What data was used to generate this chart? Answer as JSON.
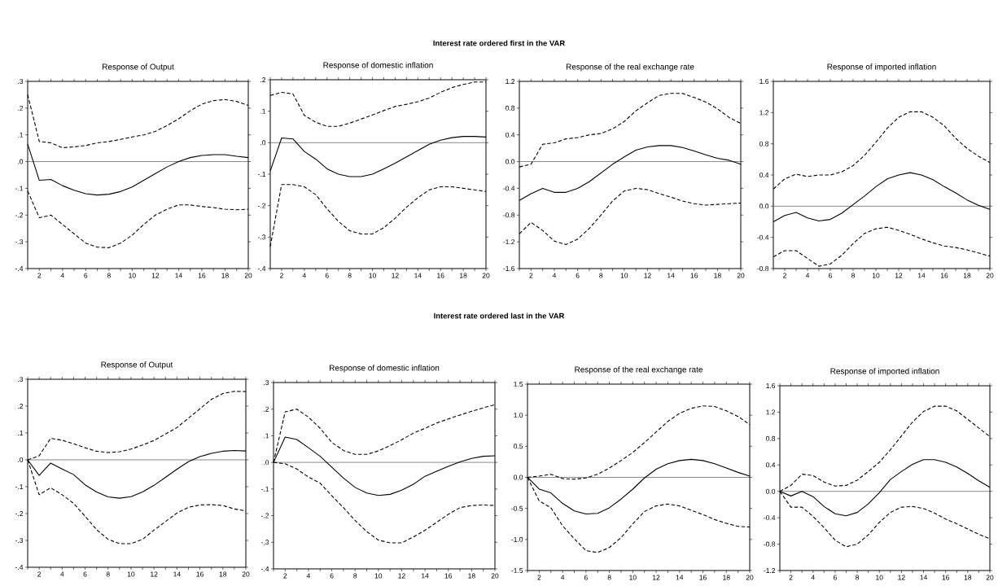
{
  "chart_data": [
    {
      "type": "line",
      "title": "Response of Output",
      "annotations": [
        "Interest rate ordered first in the VAR"
      ],
      "x": [
        1,
        2,
        3,
        4,
        5,
        6,
        7,
        8,
        9,
        10,
        11,
        12,
        13,
        14,
        15,
        16,
        17,
        18,
        19,
        20
      ],
      "xlim": [
        1,
        20
      ],
      "xticks": [
        {
          "value": 1,
          "label": null
        },
        2,
        {
          "value": 3,
          "label": null
        },
        4,
        {
          "value": 5,
          "label": null
        },
        6,
        {
          "value": 7,
          "label": null
        },
        8,
        {
          "value": 9,
          "label": null
        },
        10,
        {
          "value": 11,
          "label": null
        },
        12,
        {
          "value": 13,
          "label": null
        },
        14,
        {
          "value": 15,
          "label": null
        },
        16,
        {
          "value": 17,
          "label": null
        },
        18,
        {
          "value": 19,
          "label": null
        },
        20
      ],
      "ylim": [
        -0.4,
        0.3
      ],
      "yticks": [
        {
          "value": -0.4,
          "label": "-.4"
        },
        {
          "value": -0.3,
          "label": "-.3"
        },
        {
          "value": -0.2,
          "label": "-.2"
        },
        {
          "value": -0.1,
          "label": "-.1"
        },
        {
          "value": 0,
          "label": ".0"
        },
        {
          "value": 0.1,
          "label": ".1"
        },
        {
          "value": 0.2,
          "label": ".2"
        },
        {
          "value": 0.3,
          "label": ".3"
        }
      ],
      "ref_lines": [
        {
          "axis": "y",
          "value": 0,
          "color": "#555555"
        }
      ],
      "series": [
        {
          "color": "#000000",
          "line_style": "solid",
          "values": [
            0.065,
            -0.07,
            -0.067,
            -0.09,
            -0.107,
            -0.12,
            -0.125,
            -0.122,
            -0.112,
            -0.095,
            -0.07,
            -0.045,
            -0.02,
            0.0,
            0.015,
            0.023,
            0.026,
            0.026,
            0.02,
            0.015
          ]
        },
        {
          "color": "#000000",
          "line_style": "dashed",
          "values": [
            0.25,
            0.075,
            0.07,
            0.052,
            0.055,
            0.06,
            0.07,
            0.075,
            0.083,
            0.092,
            0.1,
            0.113,
            0.135,
            0.16,
            0.19,
            0.215,
            0.228,
            0.232,
            0.225,
            0.21
          ]
        },
        {
          "color": "#000000",
          "line_style": "dashed",
          "values": [
            -0.11,
            -0.21,
            -0.2,
            -0.235,
            -0.27,
            -0.305,
            -0.32,
            -0.322,
            -0.305,
            -0.275,
            -0.235,
            -0.2,
            -0.178,
            -0.162,
            -0.162,
            -0.168,
            -0.172,
            -0.178,
            -0.18,
            -0.178
          ]
        }
      ]
    },
    {
      "type": "line",
      "title": "Response of domestic inflation",
      "x": [
        1,
        2,
        3,
        4,
        5,
        6,
        7,
        8,
        9,
        10,
        11,
        12,
        13,
        14,
        15,
        16,
        17,
        18,
        19,
        20
      ],
      "xlim": [
        1,
        20
      ],
      "xticks": [
        {
          "value": 1,
          "label": null
        },
        2,
        {
          "value": 3,
          "label": null
        },
        4,
        {
          "value": 5,
          "label": null
        },
        6,
        {
          "value": 7,
          "label": null
        },
        8,
        {
          "value": 9,
          "label": null
        },
        10,
        {
          "value": 11,
          "label": null
        },
        12,
        {
          "value": 13,
          "label": null
        },
        14,
        {
          "value": 15,
          "label": null
        },
        16,
        {
          "value": 17,
          "label": null
        },
        18,
        {
          "value": 19,
          "label": null
        },
        20
      ],
      "ylim": [
        -0.4,
        0.2
      ],
      "yticks": [
        {
          "value": -0.4,
          "label": "-.4"
        },
        {
          "value": -0.3,
          "label": "-.3"
        },
        {
          "value": -0.2,
          "label": "-.2"
        },
        {
          "value": -0.1,
          "label": "-.1"
        },
        {
          "value": 0,
          "label": ".0"
        },
        {
          "value": 0.1,
          "label": ".1"
        },
        {
          "value": 0.2,
          "label": ".2"
        }
      ],
      "ref_lines": [
        {
          "axis": "y",
          "value": 0,
          "color": "#555555"
        }
      ],
      "series": [
        {
          "color": "#000000",
          "line_style": "solid",
          "values": [
            -0.09,
            0.015,
            0.012,
            -0.028,
            -0.052,
            -0.083,
            -0.1,
            -0.108,
            -0.108,
            -0.1,
            -0.083,
            -0.065,
            -0.045,
            -0.025,
            -0.005,
            0.008,
            0.016,
            0.02,
            0.02,
            0.018
          ]
        },
        {
          "color": "#000000",
          "line_style": "dashed",
          "values": [
            0.15,
            0.16,
            0.155,
            0.087,
            0.065,
            0.052,
            0.052,
            0.062,
            0.075,
            0.088,
            0.102,
            0.115,
            0.122,
            0.13,
            0.142,
            0.16,
            0.175,
            0.185,
            0.193,
            0.193
          ]
        },
        {
          "color": "#000000",
          "line_style": "dashed",
          "values": [
            -0.33,
            -0.133,
            -0.133,
            -0.14,
            -0.165,
            -0.21,
            -0.25,
            -0.28,
            -0.29,
            -0.29,
            -0.27,
            -0.24,
            -0.205,
            -0.175,
            -0.15,
            -0.14,
            -0.14,
            -0.145,
            -0.15,
            -0.155
          ]
        }
      ]
    },
    {
      "type": "line",
      "title": "Response of the real exchange rate",
      "x": [
        1,
        2,
        3,
        4,
        5,
        6,
        7,
        8,
        9,
        10,
        11,
        12,
        13,
        14,
        15,
        16,
        17,
        18,
        19,
        20
      ],
      "xlim": [
        1,
        20
      ],
      "xticks": [
        {
          "value": 1,
          "label": null
        },
        2,
        {
          "value": 3,
          "label": null
        },
        4,
        {
          "value": 5,
          "label": null
        },
        6,
        {
          "value": 7,
          "label": null
        },
        8,
        {
          "value": 9,
          "label": null
        },
        10,
        {
          "value": 11,
          "label": null
        },
        12,
        {
          "value": 13,
          "label": null
        },
        14,
        {
          "value": 15,
          "label": null
        },
        16,
        {
          "value": 17,
          "label": null
        },
        18,
        {
          "value": 19,
          "label": null
        },
        20
      ],
      "ylim": [
        -1.6,
        1.2
      ],
      "yticks": [
        {
          "value": -1.6,
          "label": "-1.6"
        },
        {
          "value": -1.2,
          "label": "-1.2"
        },
        {
          "value": -0.8,
          "label": "-0.8"
        },
        {
          "value": -0.4,
          "label": "-0.4"
        },
        {
          "value": 0,
          "label": "0.0"
        },
        {
          "value": 0.4,
          "label": "0.4"
        },
        {
          "value": 0.8,
          "label": "0.8"
        },
        {
          "value": 1.2,
          "label": "1.2"
        }
      ],
      "ref_lines": [
        {
          "axis": "y",
          "value": 0,
          "color": "#555555"
        }
      ],
      "series": [
        {
          "color": "#000000",
          "line_style": "solid",
          "values": [
            -0.58,
            -0.48,
            -0.4,
            -0.46,
            -0.46,
            -0.4,
            -0.3,
            -0.17,
            -0.04,
            0.07,
            0.17,
            0.22,
            0.24,
            0.24,
            0.21,
            0.16,
            0.1,
            0.05,
            0.02,
            -0.04
          ]
        },
        {
          "color": "#000000",
          "line_style": "dashed",
          "values": [
            -0.08,
            -0.04,
            0.26,
            0.28,
            0.34,
            0.36,
            0.4,
            0.42,
            0.49,
            0.6,
            0.76,
            0.88,
            0.99,
            1.02,
            1.02,
            0.96,
            0.89,
            0.79,
            0.66,
            0.57
          ]
        },
        {
          "color": "#000000",
          "line_style": "dashed",
          "values": [
            -1.08,
            -0.91,
            -1.03,
            -1.19,
            -1.24,
            -1.16,
            -1.0,
            -0.8,
            -0.59,
            -0.44,
            -0.4,
            -0.42,
            -0.48,
            -0.53,
            -0.59,
            -0.63,
            -0.65,
            -0.64,
            -0.63,
            -0.62
          ]
        }
      ]
    },
    {
      "type": "line",
      "title": "Response of imported inflation",
      "x": [
        1,
        2,
        3,
        4,
        5,
        6,
        7,
        8,
        9,
        10,
        11,
        12,
        13,
        14,
        15,
        16,
        17,
        18,
        19,
        20
      ],
      "xlim": [
        1,
        20
      ],
      "xticks": [
        {
          "value": 1,
          "label": null
        },
        2,
        {
          "value": 3,
          "label": null
        },
        4,
        {
          "value": 5,
          "label": null
        },
        6,
        {
          "value": 7,
          "label": null
        },
        8,
        {
          "value": 9,
          "label": null
        },
        10,
        {
          "value": 11,
          "label": null
        },
        12,
        {
          "value": 13,
          "label": null
        },
        14,
        {
          "value": 15,
          "label": null
        },
        16,
        {
          "value": 17,
          "label": null
        },
        18,
        {
          "value": 19,
          "label": null
        },
        20
      ],
      "ylim": [
        -0.8,
        1.6
      ],
      "yticks": [
        {
          "value": -0.8,
          "label": "-0.8"
        },
        {
          "value": -0.4,
          "label": "-0.4"
        },
        {
          "value": 0,
          "label": "0.0"
        },
        {
          "value": 0.4,
          "label": "0.4"
        },
        {
          "value": 0.8,
          "label": "0.8"
        },
        {
          "value": 1.2,
          "label": "1.2"
        },
        {
          "value": 1.6,
          "label": "1.6"
        }
      ],
      "ref_lines": [
        {
          "axis": "y",
          "value": 0,
          "color": "#555555"
        }
      ],
      "series": [
        {
          "color": "#000000",
          "line_style": "solid",
          "values": [
            -0.2,
            -0.12,
            -0.08,
            -0.15,
            -0.19,
            -0.17,
            -0.09,
            0.02,
            0.13,
            0.25,
            0.35,
            0.4,
            0.43,
            0.4,
            0.34,
            0.25,
            0.17,
            0.08,
            0.01,
            -0.04
          ]
        },
        {
          "color": "#000000",
          "line_style": "dashed",
          "values": [
            0.22,
            0.35,
            0.41,
            0.38,
            0.4,
            0.4,
            0.44,
            0.52,
            0.65,
            0.82,
            1.0,
            1.14,
            1.21,
            1.21,
            1.14,
            1.03,
            0.87,
            0.74,
            0.64,
            0.56
          ]
        },
        {
          "color": "#000000",
          "line_style": "dashed",
          "values": [
            -0.65,
            -0.57,
            -0.57,
            -0.67,
            -0.77,
            -0.74,
            -0.63,
            -0.48,
            -0.35,
            -0.29,
            -0.27,
            -0.31,
            -0.36,
            -0.42,
            -0.47,
            -0.51,
            -0.53,
            -0.56,
            -0.6,
            -0.64
          ]
        }
      ]
    },
    {
      "type": "line",
      "title": "Response of Output",
      "annotations": [
        "Interest rate ordered last in the VAR"
      ],
      "x": [
        1,
        2,
        3,
        4,
        5,
        6,
        7,
        8,
        9,
        10,
        11,
        12,
        13,
        14,
        15,
        16,
        17,
        18,
        19,
        20
      ],
      "xlim": [
        1,
        20
      ],
      "xticks": [
        {
          "value": 1,
          "label": null
        },
        2,
        {
          "value": 3,
          "label": null
        },
        4,
        {
          "value": 5,
          "label": null
        },
        6,
        {
          "value": 7,
          "label": null
        },
        8,
        {
          "value": 9,
          "label": null
        },
        10,
        {
          "value": 11,
          "label": null
        },
        12,
        {
          "value": 13,
          "label": null
        },
        14,
        {
          "value": 15,
          "label": null
        },
        16,
        {
          "value": 17,
          "label": null
        },
        18,
        {
          "value": 19,
          "label": null
        },
        20
      ],
      "ylim": [
        -0.4,
        0.3
      ],
      "yticks": [
        {
          "value": -0.4,
          "label": "-.4"
        },
        {
          "value": -0.3,
          "label": "-.3"
        },
        {
          "value": -0.2,
          "label": "-.2"
        },
        {
          "value": -0.1,
          "label": "-.1"
        },
        {
          "value": 0,
          "label": ".0"
        },
        {
          "value": 0.1,
          "label": ".1"
        },
        {
          "value": 0.2,
          "label": ".2"
        },
        {
          "value": 0.3,
          "label": ".3"
        }
      ],
      "ref_lines": [
        {
          "axis": "y",
          "value": 0,
          "color": "#555555"
        }
      ],
      "series": [
        {
          "color": "#000000",
          "line_style": "solid",
          "values": [
            0,
            -0.058,
            -0.012,
            -0.034,
            -0.055,
            -0.093,
            -0.12,
            -0.138,
            -0.143,
            -0.137,
            -0.12,
            -0.095,
            -0.065,
            -0.035,
            -0.007,
            0.012,
            0.024,
            0.032,
            0.035,
            0.033
          ]
        },
        {
          "color": "#000000",
          "line_style": "dashed",
          "values": [
            0,
            0.015,
            0.08,
            0.073,
            0.06,
            0.045,
            0.032,
            0.027,
            0.03,
            0.04,
            0.055,
            0.072,
            0.096,
            0.12,
            0.155,
            0.19,
            0.225,
            0.247,
            0.255,
            0.254
          ]
        },
        {
          "color": "#000000",
          "line_style": "dashed",
          "values": [
            0,
            -0.13,
            -0.104,
            -0.13,
            -0.162,
            -0.21,
            -0.26,
            -0.296,
            -0.312,
            -0.312,
            -0.296,
            -0.262,
            -0.23,
            -0.198,
            -0.177,
            -0.168,
            -0.167,
            -0.17,
            -0.183,
            -0.19
          ]
        }
      ]
    },
    {
      "type": "line",
      "title": "Response of domestic inflation",
      "x": [
        1,
        2,
        3,
        4,
        5,
        6,
        7,
        8,
        9,
        10,
        11,
        12,
        13,
        14,
        15,
        16,
        17,
        18,
        19,
        20
      ],
      "xlim": [
        1,
        20
      ],
      "xticks": [
        {
          "value": 1,
          "label": null
        },
        2,
        {
          "value": 3,
          "label": null
        },
        4,
        {
          "value": 5,
          "label": null
        },
        6,
        {
          "value": 7,
          "label": null
        },
        8,
        {
          "value": 9,
          "label": null
        },
        10,
        {
          "value": 11,
          "label": null
        },
        12,
        {
          "value": 13,
          "label": null
        },
        14,
        {
          "value": 15,
          "label": null
        },
        16,
        {
          "value": 17,
          "label": null
        },
        18,
        {
          "value": 19,
          "label": null
        },
        20
      ],
      "ylim": [
        -0.4,
        0.3
      ],
      "yticks": [
        {
          "value": -0.4,
          "label": "-.4"
        },
        {
          "value": -0.3,
          "label": "-.3"
        },
        {
          "value": -0.2,
          "label": "-.2"
        },
        {
          "value": -0.1,
          "label": "-.1"
        },
        {
          "value": 0,
          "label": ".0"
        },
        {
          "value": 0.1,
          "label": ".1"
        },
        {
          "value": 0.2,
          "label": ".2"
        },
        {
          "value": 0.3,
          "label": ".3"
        }
      ],
      "ref_lines": [
        {
          "axis": "y",
          "value": 0,
          "color": "#555555"
        }
      ],
      "series": [
        {
          "color": "#000000",
          "line_style": "solid",
          "values": [
            0,
            0.095,
            0.086,
            0.055,
            0.023,
            -0.018,
            -0.059,
            -0.094,
            -0.115,
            -0.124,
            -0.12,
            -0.104,
            -0.082,
            -0.052,
            -0.033,
            -0.015,
            0.002,
            0.015,
            0.023,
            0.025
          ]
        },
        {
          "color": "#000000",
          "line_style": "dashed",
          "values": [
            0,
            0.19,
            0.2,
            0.17,
            0.128,
            0.075,
            0.045,
            0.03,
            0.03,
            0.043,
            0.063,
            0.085,
            0.11,
            0.128,
            0.148,
            0.163,
            0.178,
            0.192,
            0.205,
            0.217
          ]
        },
        {
          "color": "#000000",
          "line_style": "dashed",
          "values": [
            0,
            -0.005,
            -0.025,
            -0.055,
            -0.078,
            -0.125,
            -0.17,
            -0.218,
            -0.26,
            -0.292,
            -0.302,
            -0.302,
            -0.28,
            -0.255,
            -0.225,
            -0.195,
            -0.17,
            -0.162,
            -0.16,
            -0.162
          ]
        }
      ]
    },
    {
      "type": "line",
      "title": "Response of the real exchange rate",
      "x": [
        1,
        2,
        3,
        4,
        5,
        6,
        7,
        8,
        9,
        10,
        11,
        12,
        13,
        14,
        15,
        16,
        17,
        18,
        19,
        20
      ],
      "xlim": [
        1,
        20
      ],
      "xticks": [
        {
          "value": 1,
          "label": null
        },
        2,
        {
          "value": 3,
          "label": null
        },
        4,
        {
          "value": 5,
          "label": null
        },
        6,
        {
          "value": 7,
          "label": null
        },
        8,
        {
          "value": 9,
          "label": null
        },
        10,
        {
          "value": 11,
          "label": null
        },
        12,
        {
          "value": 13,
          "label": null
        },
        14,
        {
          "value": 15,
          "label": null
        },
        16,
        {
          "value": 17,
          "label": null
        },
        18,
        {
          "value": 19,
          "label": null
        },
        20
      ],
      "ylim": [
        -1.5,
        1.5
      ],
      "yticks": [
        {
          "value": -1.5,
          "label": "-1.5"
        },
        {
          "value": -1.0,
          "label": "-1.0"
        },
        {
          "value": -0.5,
          "label": "-0.5"
        },
        {
          "value": 0,
          "label": "0.0"
        },
        {
          "value": 0.5,
          "label": "0.5"
        },
        {
          "value": 1.0,
          "label": "1.0"
        },
        {
          "value": 1.5,
          "label": "1.5"
        }
      ],
      "ref_lines": [
        {
          "axis": "y",
          "value": 0,
          "color": "#555555"
        }
      ],
      "series": [
        {
          "color": "#000000",
          "line_style": "solid",
          "values": [
            0,
            -0.19,
            -0.25,
            -0.42,
            -0.54,
            -0.59,
            -0.58,
            -0.49,
            -0.35,
            -0.19,
            -0.01,
            0.13,
            0.22,
            0.27,
            0.29,
            0.27,
            0.22,
            0.15,
            0.08,
            0.02
          ]
        },
        {
          "color": "#000000",
          "line_style": "dashed",
          "values": [
            0,
            0.02,
            0.05,
            -0.02,
            -0.03,
            -0.01,
            0.05,
            0.15,
            0.27,
            0.4,
            0.56,
            0.73,
            0.9,
            1.03,
            1.11,
            1.15,
            1.14,
            1.07,
            0.98,
            0.85
          ]
        },
        {
          "color": "#000000",
          "line_style": "dashed",
          "values": [
            0,
            -0.38,
            -0.49,
            -0.78,
            -0.99,
            -1.18,
            -1.21,
            -1.13,
            -0.97,
            -0.75,
            -0.55,
            -0.46,
            -0.43,
            -0.46,
            -0.53,
            -0.6,
            -0.68,
            -0.74,
            -0.79,
            -0.8
          ]
        }
      ]
    },
    {
      "type": "line",
      "title": "Response of imported inflation",
      "x": [
        1,
        2,
        3,
        4,
        5,
        6,
        7,
        8,
        9,
        10,
        11,
        12,
        13,
        14,
        15,
        16,
        17,
        18,
        19,
        20
      ],
      "xlim": [
        1,
        20
      ],
      "xticks": [
        {
          "value": 1,
          "label": null
        },
        2,
        {
          "value": 3,
          "label": null
        },
        4,
        {
          "value": 5,
          "label": null
        },
        6,
        {
          "value": 7,
          "label": null
        },
        8,
        {
          "value": 9,
          "label": null
        },
        10,
        {
          "value": 11,
          "label": null
        },
        12,
        {
          "value": 13,
          "label": null
        },
        14,
        {
          "value": 15,
          "label": null
        },
        16,
        {
          "value": 17,
          "label": null
        },
        18,
        {
          "value": 19,
          "label": null
        },
        20
      ],
      "ylim": [
        -1.2,
        1.6
      ],
      "yticks": [
        {
          "value": -1.2,
          "label": "-1.2"
        },
        {
          "value": -0.8,
          "label": "-0.8"
        },
        {
          "value": -0.4,
          "label": "-0.4"
        },
        {
          "value": 0,
          "label": "0.0"
        },
        {
          "value": 0.4,
          "label": "0.4"
        },
        {
          "value": 0.8,
          "label": "0.8"
        },
        {
          "value": 1.2,
          "label": "1.2"
        },
        {
          "value": 1.6,
          "label": "1.6"
        }
      ],
      "ref_lines": [
        {
          "axis": "y",
          "value": 0,
          "color": "#555555"
        }
      ],
      "series": [
        {
          "color": "#000000",
          "line_style": "solid",
          "values": [
            0,
            -0.07,
            0.0,
            -0.08,
            -0.23,
            -0.34,
            -0.37,
            -0.32,
            -0.19,
            -0.02,
            0.18,
            0.3,
            0.41,
            0.48,
            0.48,
            0.44,
            0.37,
            0.27,
            0.16,
            0.06
          ]
        },
        {
          "color": "#000000",
          "line_style": "dashed",
          "values": [
            0,
            0.09,
            0.26,
            0.24,
            0.14,
            0.08,
            0.09,
            0.17,
            0.3,
            0.44,
            0.63,
            0.84,
            1.05,
            1.21,
            1.29,
            1.29,
            1.22,
            1.09,
            0.96,
            0.83
          ]
        },
        {
          "color": "#000000",
          "line_style": "dashed",
          "values": [
            0,
            -0.24,
            -0.24,
            -0.38,
            -0.55,
            -0.74,
            -0.84,
            -0.8,
            -0.66,
            -0.47,
            -0.32,
            -0.24,
            -0.23,
            -0.26,
            -0.33,
            -0.42,
            -0.49,
            -0.57,
            -0.65,
            -0.72
          ]
        }
      ]
    }
  ]
}
